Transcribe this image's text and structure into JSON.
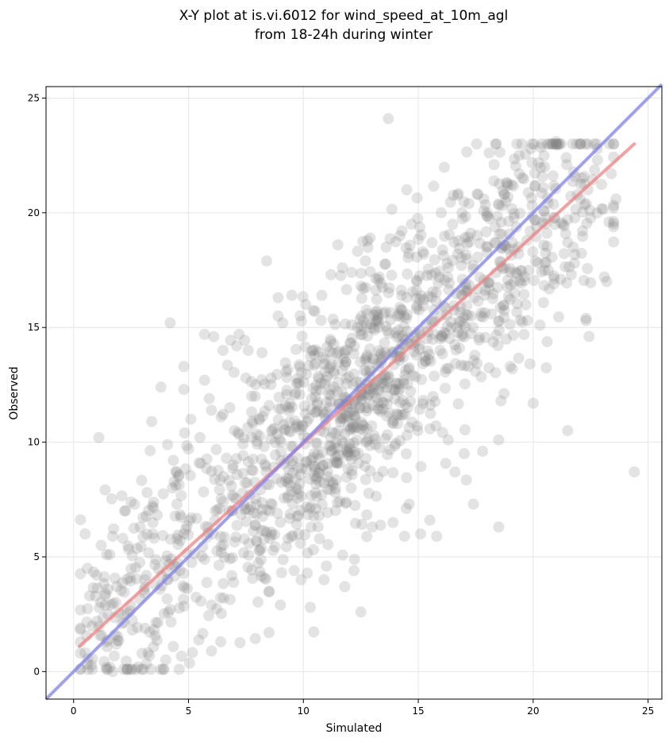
{
  "chart_data": {
    "type": "scatter",
    "title_lines": [
      "X-Y plot at is.vi.6012 for wind_speed_at_10m_agl",
      "from 18-24h during winter"
    ],
    "xlabel": "Simulated",
    "ylabel": "Observed",
    "xlim": [
      -1.2,
      25.6
    ],
    "ylim": [
      -1.2,
      25.5
    ],
    "xticks": [
      0,
      5,
      10,
      15,
      20,
      25
    ],
    "yticks": [
      0,
      5,
      10,
      15,
      20,
      25
    ],
    "grid": true,
    "point_color": "#7f7f7f",
    "point_alpha": 0.22,
    "point_count": 1550,
    "regression_line": {
      "color": "#f08080",
      "x": [
        0.25,
        24.4
      ],
      "y": [
        1.1,
        23.0
      ]
    },
    "identity_line": {
      "color": "#8080ee",
      "x": [
        -1.2,
        25.6
      ],
      "y": [
        -1.2,
        25.6
      ]
    },
    "series": [
      {
        "points": [
          [
            0.3,
            1.9
          ],
          [
            0.5,
            6.0
          ],
          [
            0.6,
            4.5
          ],
          [
            0.7,
            3.3
          ],
          [
            1.1,
            10.2
          ],
          [
            1.0,
            4.2
          ],
          [
            1.4,
            3.4
          ],
          [
            1.2,
            5.5
          ],
          [
            1.7,
            0.0
          ],
          [
            1.8,
            1.6
          ],
          [
            1.7,
            5.9
          ],
          [
            1.5,
            2.5
          ],
          [
            2.5,
            7.4
          ],
          [
            2.9,
            6.3
          ],
          [
            3.1,
            4.0
          ],
          [
            3.4,
            10.9
          ],
          [
            3.2,
            7.8
          ],
          [
            3.8,
            12.4
          ],
          [
            2.8,
            0.2
          ],
          [
            3.3,
            0.7
          ],
          [
            3.9,
            0.1
          ],
          [
            4.2,
            15.2
          ],
          [
            4.3,
            8.0
          ],
          [
            4.5,
            7.3
          ],
          [
            4.6,
            0.1
          ],
          [
            4.8,
            13.3
          ],
          [
            4.8,
            12.3
          ],
          [
            5.0,
            9.7
          ],
          [
            5.1,
            11.0
          ],
          [
            5.5,
            10.2
          ],
          [
            5.7,
            12.7
          ],
          [
            5.9,
            11.9
          ],
          [
            5.7,
            14.7
          ],
          [
            6.1,
            14.6
          ],
          [
            6.0,
            0.9
          ],
          [
            6.4,
            1.3
          ],
          [
            6.5,
            14.0
          ],
          [
            6.8,
            11.5
          ],
          [
            7.1,
            14.2
          ],
          [
            7.2,
            14.7
          ],
          [
            7.0,
            10.5
          ],
          [
            7.6,
            14.0
          ],
          [
            7.9,
            12.0
          ],
          [
            8.2,
            13.9
          ],
          [
            8.4,
            17.9
          ],
          [
            8.6,
            12.8
          ],
          [
            8.9,
            16.3
          ],
          [
            8.9,
            15.5
          ],
          [
            8.5,
            3.5
          ],
          [
            9.0,
            2.9
          ],
          [
            9.1,
            15.2
          ],
          [
            9.5,
            16.4
          ],
          [
            9.6,
            4.4
          ],
          [
            9.9,
            4.0
          ],
          [
            10.1,
            16.0
          ],
          [
            10.3,
            2.8
          ],
          [
            10.5,
            15.7
          ],
          [
            10.8,
            16.4
          ],
          [
            10.9,
            4.0
          ],
          [
            11.0,
            4.6
          ],
          [
            11.2,
            17.3
          ],
          [
            11.5,
            18.6
          ],
          [
            11.7,
            17.6
          ],
          [
            11.8,
            3.7
          ],
          [
            12.1,
            17.4
          ],
          [
            12.2,
            4.4
          ],
          [
            12.6,
            16.7
          ],
          [
            12.5,
            2.6
          ],
          [
            12.7,
            17.9
          ],
          [
            12.9,
            18.9
          ],
          [
            13.0,
            6.3
          ],
          [
            13.3,
            17.2
          ],
          [
            13.6,
            18.5
          ],
          [
            13.7,
            24.1
          ],
          [
            13.9,
            6.5
          ],
          [
            14.2,
            19.0
          ],
          [
            14.4,
            5.9
          ],
          [
            14.5,
            21.0
          ],
          [
            14.6,
            7.3
          ],
          [
            14.7,
            19.5
          ],
          [
            15.1,
            6.0
          ],
          [
            15.2,
            18.3
          ],
          [
            15.5,
            6.6
          ],
          [
            15.6,
            18.7
          ],
          [
            15.8,
            5.9
          ],
          [
            16.0,
            20.0
          ],
          [
            16.3,
            10.1
          ],
          [
            16.5,
            19.5
          ],
          [
            16.6,
            8.7
          ],
          [
            16.9,
            20.0
          ],
          [
            17.0,
            9.5
          ],
          [
            17.2,
            20.4
          ],
          [
            17.4,
            7.3
          ],
          [
            17.6,
            20.8
          ],
          [
            17.8,
            9.6
          ],
          [
            18.0,
            20.0
          ],
          [
            18.3,
            22.1
          ],
          [
            18.5,
            6.3
          ],
          [
            18.5,
            10.1
          ],
          [
            18.6,
            11.8
          ],
          [
            18.9,
            21.2
          ],
          [
            19.0,
            13.3
          ],
          [
            19.4,
            21.7
          ],
          [
            19.6,
            14.7
          ],
          [
            19.9,
            22.8
          ],
          [
            20.0,
            11.7
          ],
          [
            20.3,
            15.1
          ],
          [
            20.5,
            22.0
          ],
          [
            20.9,
            16.9
          ],
          [
            21.0,
            23.1
          ],
          [
            21.2,
            17.1
          ],
          [
            21.5,
            10.5
          ],
          [
            21.8,
            17.8
          ],
          [
            22.3,
            15.4
          ],
          [
            22.3,
            15.3
          ],
          [
            22.8,
            22.3
          ],
          [
            23.1,
            17.2
          ],
          [
            23.2,
            17.0
          ],
          [
            23.3,
            19.6
          ],
          [
            23.4,
            21.7
          ],
          [
            23.6,
            20.6
          ],
          [
            24.4,
            8.7
          ],
          [
            21.3,
            19.5
          ],
          [
            20.1,
            17.9
          ],
          [
            19.2,
            16.5
          ],
          [
            18.7,
            18.6
          ]
        ]
      }
    ]
  }
}
